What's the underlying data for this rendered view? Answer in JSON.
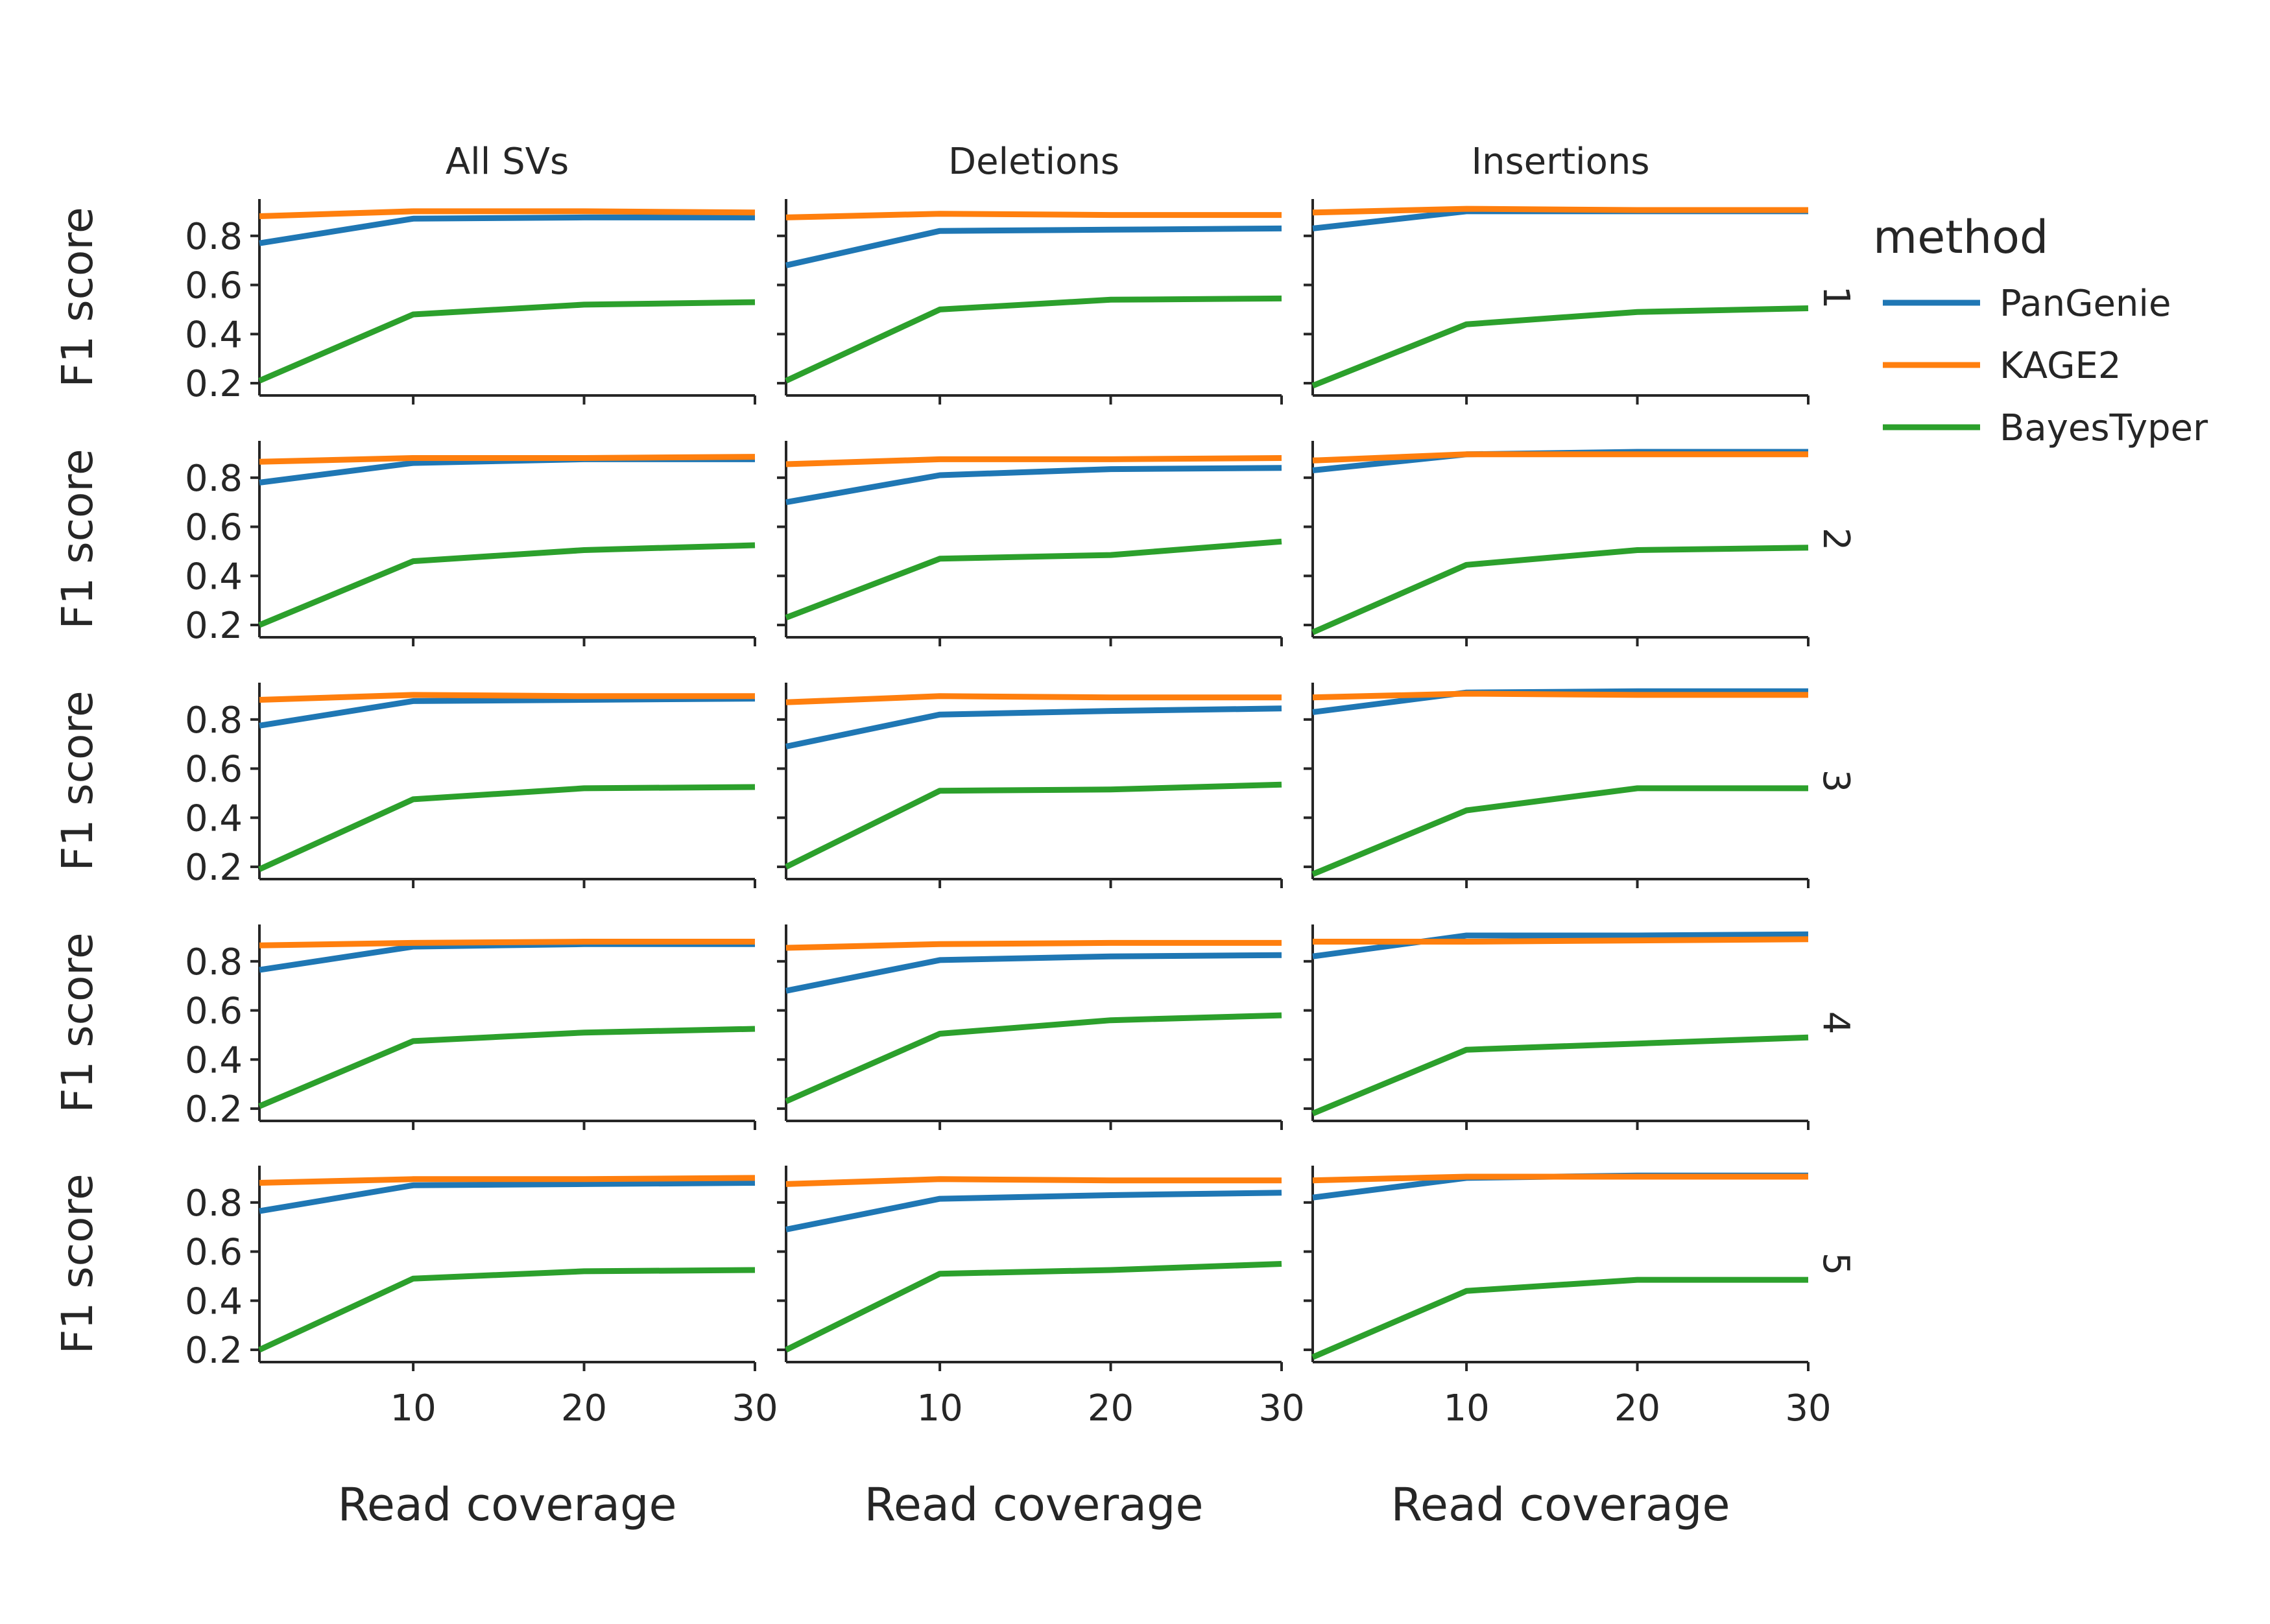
{
  "chart_data": {
    "type": "line",
    "layout": "facet grid (rows = replicate, columns = SV type)",
    "column_titles": [
      "All SVs",
      "Deletions",
      "Insertions"
    ],
    "row_labels": [
      "1",
      "2",
      "3",
      "4",
      "5"
    ],
    "xlabel": "Read coverage",
    "ylabel": "F1 score",
    "xlim": [
      1,
      30
    ],
    "ylim": [
      0.15,
      0.95
    ],
    "xticks": [
      10,
      20,
      30
    ],
    "xtick_labels": [
      "10",
      "20",
      "30"
    ],
    "yticks": [
      0.2,
      0.4,
      0.6,
      0.8
    ],
    "ytick_labels": [
      "0.2",
      "0.4",
      "0.6",
      "0.8"
    ],
    "x": [
      1,
      10,
      20,
      30
    ],
    "legend": {
      "title": "method",
      "position": "right",
      "entries": [
        "PanGenie",
        "KAGE2",
        "BayesTyper"
      ]
    },
    "colors": {
      "PanGenie": "#1f77b4",
      "KAGE2": "#ff7f0e",
      "BayesTyper": "#2ca02c"
    },
    "panels": [
      [
        {
          "row": "1",
          "column": "All SVs",
          "series": [
            {
              "name": "PanGenie",
              "values": [
                0.77,
                0.87,
                0.875,
                0.875
              ]
            },
            {
              "name": "KAGE2",
              "values": [
                0.88,
                0.9,
                0.9,
                0.895
              ]
            },
            {
              "name": "BayesTyper",
              "values": [
                0.21,
                0.48,
                0.52,
                0.53
              ]
            }
          ]
        },
        {
          "row": "1",
          "column": "Deletions",
          "series": [
            {
              "name": "PanGenie",
              "values": [
                0.68,
                0.82,
                0.825,
                0.83
              ]
            },
            {
              "name": "KAGE2",
              "values": [
                0.875,
                0.89,
                0.885,
                0.885
              ]
            },
            {
              "name": "BayesTyper",
              "values": [
                0.21,
                0.5,
                0.54,
                0.545
              ]
            }
          ]
        },
        {
          "row": "1",
          "column": "Insertions",
          "series": [
            {
              "name": "PanGenie",
              "values": [
                0.83,
                0.9,
                0.9,
                0.9
              ]
            },
            {
              "name": "KAGE2",
              "values": [
                0.895,
                0.91,
                0.905,
                0.905
              ]
            },
            {
              "name": "BayesTyper",
              "values": [
                0.19,
                0.44,
                0.49,
                0.505
              ]
            }
          ]
        }
      ],
      [
        {
          "row": "2",
          "column": "All SVs",
          "series": [
            {
              "name": "PanGenie",
              "values": [
                0.78,
                0.86,
                0.875,
                0.875
              ]
            },
            {
              "name": "KAGE2",
              "values": [
                0.865,
                0.88,
                0.88,
                0.885
              ]
            },
            {
              "name": "BayesTyper",
              "values": [
                0.2,
                0.46,
                0.505,
                0.525
              ]
            }
          ]
        },
        {
          "row": "2",
          "column": "Deletions",
          "series": [
            {
              "name": "PanGenie",
              "values": [
                0.7,
                0.81,
                0.835,
                0.84
              ]
            },
            {
              "name": "KAGE2",
              "values": [
                0.855,
                0.875,
                0.875,
                0.88
              ]
            },
            {
              "name": "BayesTyper",
              "values": [
                0.23,
                0.47,
                0.485,
                0.54
              ]
            }
          ]
        },
        {
          "row": "2",
          "column": "Insertions",
          "series": [
            {
              "name": "PanGenie",
              "values": [
                0.83,
                0.895,
                0.905,
                0.905
              ]
            },
            {
              "name": "KAGE2",
              "values": [
                0.87,
                0.895,
                0.895,
                0.895
              ]
            },
            {
              "name": "BayesTyper",
              "values": [
                0.17,
                0.445,
                0.505,
                0.515
              ]
            }
          ]
        }
      ],
      [
        {
          "row": "3",
          "column": "All SVs",
          "series": [
            {
              "name": "PanGenie",
              "values": [
                0.775,
                0.875,
                0.88,
                0.885
              ]
            },
            {
              "name": "KAGE2",
              "values": [
                0.88,
                0.9,
                0.895,
                0.895
              ]
            },
            {
              "name": "BayesTyper",
              "values": [
                0.19,
                0.475,
                0.52,
                0.525
              ]
            }
          ]
        },
        {
          "row": "3",
          "column": "Deletions",
          "series": [
            {
              "name": "PanGenie",
              "values": [
                0.69,
                0.82,
                0.835,
                0.845
              ]
            },
            {
              "name": "KAGE2",
              "values": [
                0.87,
                0.895,
                0.89,
                0.89
              ]
            },
            {
              "name": "BayesTyper",
              "values": [
                0.2,
                0.51,
                0.515,
                0.535
              ]
            }
          ]
        },
        {
          "row": "3",
          "column": "Insertions",
          "series": [
            {
              "name": "PanGenie",
              "values": [
                0.83,
                0.91,
                0.915,
                0.915
              ]
            },
            {
              "name": "KAGE2",
              "values": [
                0.89,
                0.905,
                0.9,
                0.9
              ]
            },
            {
              "name": "BayesTyper",
              "values": [
                0.17,
                0.43,
                0.52,
                0.52
              ]
            }
          ]
        }
      ],
      [
        {
          "row": "4",
          "column": "All SVs",
          "series": [
            {
              "name": "PanGenie",
              "values": [
                0.765,
                0.86,
                0.87,
                0.87
              ]
            },
            {
              "name": "KAGE2",
              "values": [
                0.865,
                0.875,
                0.88,
                0.88
              ]
            },
            {
              "name": "BayesTyper",
              "values": [
                0.21,
                0.475,
                0.51,
                0.525
              ]
            }
          ]
        },
        {
          "row": "4",
          "column": "Deletions",
          "series": [
            {
              "name": "PanGenie",
              "values": [
                0.68,
                0.805,
                0.82,
                0.825
              ]
            },
            {
              "name": "KAGE2",
              "values": [
                0.855,
                0.87,
                0.875,
                0.875
              ]
            },
            {
              "name": "BayesTyper",
              "values": [
                0.23,
                0.505,
                0.56,
                0.58
              ]
            }
          ]
        },
        {
          "row": "4",
          "column": "Insertions",
          "series": [
            {
              "name": "PanGenie",
              "values": [
                0.82,
                0.905,
                0.905,
                0.91
              ]
            },
            {
              "name": "KAGE2",
              "values": [
                0.88,
                0.88,
                0.885,
                0.89
              ]
            },
            {
              "name": "BayesTyper",
              "values": [
                0.18,
                0.44,
                0.465,
                0.49
              ]
            }
          ]
        }
      ],
      [
        {
          "row": "5",
          "column": "All SVs",
          "series": [
            {
              "name": "PanGenie",
              "values": [
                0.765,
                0.87,
                0.875,
                0.88
              ]
            },
            {
              "name": "KAGE2",
              "values": [
                0.88,
                0.895,
                0.895,
                0.9
              ]
            },
            {
              "name": "BayesTyper",
              "values": [
                0.2,
                0.49,
                0.52,
                0.525
              ]
            }
          ]
        },
        {
          "row": "5",
          "column": "Deletions",
          "series": [
            {
              "name": "PanGenie",
              "values": [
                0.69,
                0.815,
                0.83,
                0.84
              ]
            },
            {
              "name": "KAGE2",
              "values": [
                0.875,
                0.895,
                0.89,
                0.89
              ]
            },
            {
              "name": "BayesTyper",
              "values": [
                0.2,
                0.51,
                0.525,
                0.55
              ]
            }
          ]
        },
        {
          "row": "5",
          "column": "Insertions",
          "series": [
            {
              "name": "PanGenie",
              "values": [
                0.82,
                0.9,
                0.91,
                0.91
              ]
            },
            {
              "name": "KAGE2",
              "values": [
                0.89,
                0.905,
                0.905,
                0.905
              ]
            },
            {
              "name": "BayesTyper",
              "values": [
                0.17,
                0.44,
                0.485,
                0.485
              ]
            }
          ]
        }
      ]
    ]
  }
}
